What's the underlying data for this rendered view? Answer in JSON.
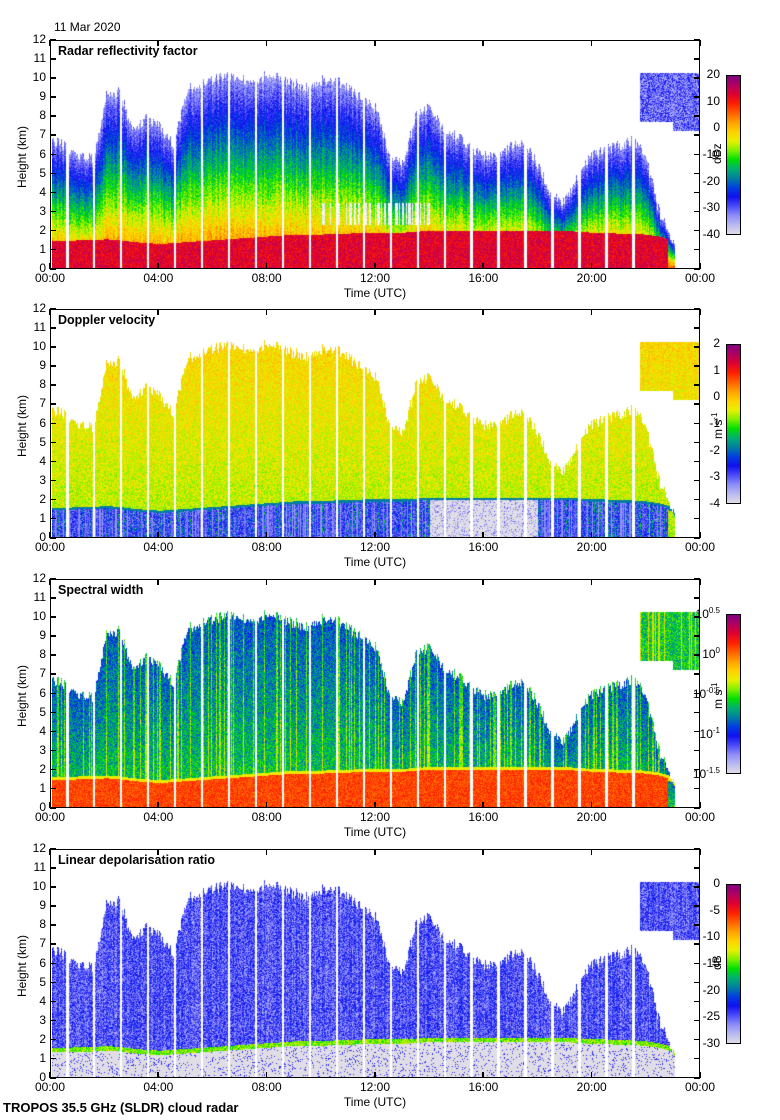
{
  "date": "11 Mar 2020",
  "footer": "TROPOS 35.5 GHz (SLDR) cloud radar",
  "colormap": [
    "#e0dde6",
    "#b8b8f2",
    "#8c8cf8",
    "#4a4af8",
    "#1010f0",
    "#0040e0",
    "#0080a0",
    "#00b070",
    "#00e000",
    "#80f000",
    "#e8f000",
    "#ffd000",
    "#ffa000",
    "#ff6000",
    "#ff2000",
    "#e00030",
    "#b00060",
    "#800080"
  ],
  "chart_data": [
    {
      "type": "heatmap",
      "title": "Radar reflectivity factor",
      "xlabel": "Time (UTC)",
      "ylabel": "Height (km)",
      "x_ticks": [
        "00:00",
        "04:00",
        "08:00",
        "12:00",
        "16:00",
        "20:00",
        "00:00"
      ],
      "xlim_hours": [
        0,
        24
      ],
      "ylim": [
        0,
        12
      ],
      "y_ticks": [
        "0",
        "1",
        "2",
        "3",
        "4",
        "5",
        "6",
        "7",
        "8",
        "9",
        "10",
        "11",
        "12"
      ],
      "colorbar": {
        "unit": "dBz",
        "ticks": [
          "20",
          "10",
          "0",
          "-10",
          "-20",
          "-30",
          "-40"
        ],
        "range": [
          -40,
          20
        ]
      },
      "field": "reflectivity"
    },
    {
      "type": "heatmap",
      "title": "Doppler velocity",
      "xlabel": "Time (UTC)",
      "ylabel": "Height (km)",
      "x_ticks": [
        "00:00",
        "04:00",
        "08:00",
        "12:00",
        "16:00",
        "20:00",
        "00:00"
      ],
      "xlim_hours": [
        0,
        24
      ],
      "ylim": [
        0,
        12
      ],
      "y_ticks": [
        "0",
        "1",
        "2",
        "3",
        "4",
        "5",
        "6",
        "7",
        "8",
        "9",
        "10",
        "11",
        "12"
      ],
      "colorbar": {
        "unit": "m s-1",
        "ticks": [
          "2",
          "1",
          "0",
          "-1",
          "-2",
          "-3",
          "-4"
        ],
        "range": [
          -4,
          2
        ]
      },
      "field": "velocity"
    },
    {
      "type": "heatmap",
      "title": "Spectral width",
      "xlabel": "Time (UTC)",
      "ylabel": "Height (km)",
      "x_ticks": [
        "00:00",
        "04:00",
        "08:00",
        "12:00",
        "16:00",
        "20:00",
        "00:00"
      ],
      "xlim_hours": [
        0,
        24
      ],
      "ylim": [
        0,
        12
      ],
      "y_ticks": [
        "0",
        "1",
        "2",
        "3",
        "4",
        "5",
        "6",
        "7",
        "8",
        "9",
        "10",
        "11",
        "12"
      ],
      "colorbar": {
        "unit": "m s-1",
        "ticks": [
          "10^0.5",
          "10^0",
          "10^-0.5",
          "10^-1",
          "10^-1.5"
        ],
        "range": [
          -1.5,
          0.5
        ],
        "scale": "log10"
      },
      "field": "width"
    },
    {
      "type": "heatmap",
      "title": "Linear depolarisation ratio",
      "xlabel": "Time (UTC)",
      "ylabel": "Height (km)",
      "x_ticks": [
        "00:00",
        "04:00",
        "08:00",
        "12:00",
        "16:00",
        "20:00",
        "00:00"
      ],
      "xlim_hours": [
        0,
        24
      ],
      "ylim": [
        0,
        12
      ],
      "y_ticks": [
        "0",
        "1",
        "2",
        "3",
        "4",
        "5",
        "6",
        "7",
        "8",
        "9",
        "10",
        "11",
        "12"
      ],
      "colorbar": {
        "unit": "dB",
        "ticks": [
          "0",
          "-5",
          "-10",
          "-15",
          "-20",
          "-25",
          "-30"
        ],
        "range": [
          -30,
          0
        ]
      },
      "field": "ldr"
    }
  ],
  "profile": {
    "hours": [
      0,
      0.5,
      1,
      1.5,
      2,
      2.5,
      3,
      3.5,
      4,
      4.5,
      5,
      5.5,
      6,
      6.5,
      7,
      7.5,
      8,
      8.5,
      9,
      9.5,
      10,
      10.5,
      11,
      11.5,
      12,
      12.5,
      13,
      13.5,
      14,
      14.5,
      15,
      15.5,
      16,
      16.5,
      17,
      17.5,
      18,
      18.5,
      19,
      19.5,
      20,
      20.5,
      21,
      21.5,
      22,
      22.5,
      23,
      23.5,
      24
    ],
    "cloud_top_km": [
      6.8,
      6.5,
      6.0,
      5.8,
      9.2,
      9.4,
      7.2,
      8.0,
      7.5,
      6.5,
      9.5,
      9.8,
      10.0,
      10.2,
      10.0,
      9.8,
      10.4,
      10.0,
      9.8,
      9.6,
      10.0,
      10.1,
      9.5,
      9.0,
      8.5,
      6.0,
      5.5,
      8.2,
      8.5,
      7.5,
      7.0,
      6.4,
      6.0,
      5.8,
      6.5,
      6.6,
      5.5,
      4.0,
      3.5,
      5.0,
      6.0,
      6.3,
      6.5,
      6.8,
      6.0,
      3.0,
      1.5,
      0,
      0
    ],
    "melting_layer_km": [
      1.45,
      1.45,
      1.5,
      1.5,
      1.55,
      1.5,
      1.4,
      1.35,
      1.3,
      1.35,
      1.4,
      1.45,
      1.5,
      1.55,
      1.6,
      1.65,
      1.7,
      1.75,
      1.8,
      1.8,
      1.8,
      1.85,
      1.85,
      1.9,
      1.9,
      1.9,
      1.9,
      1.95,
      2.0,
      2.0,
      2.0,
      2.0,
      2.0,
      2.0,
      2.0,
      2.0,
      2.0,
      2.0,
      2.0,
      1.95,
      1.9,
      1.9,
      1.85,
      1.85,
      1.8,
      1.7,
      1.5,
      0,
      0
    ],
    "cirrus_hours": [
      21.8,
      24
    ],
    "cirrus_km": [
      7.3,
      10.4
    ],
    "gap_hours": [
      0.55,
      1.55,
      2.55,
      3.55,
      4.55,
      5.55,
      6.55,
      7.55,
      8.55,
      9.55,
      10.55,
      11.55,
      12.55,
      13.55,
      14.55,
      15.55,
      16.55,
      17.55,
      18.55,
      19.55,
      20.55,
      21.55
    ]
  }
}
